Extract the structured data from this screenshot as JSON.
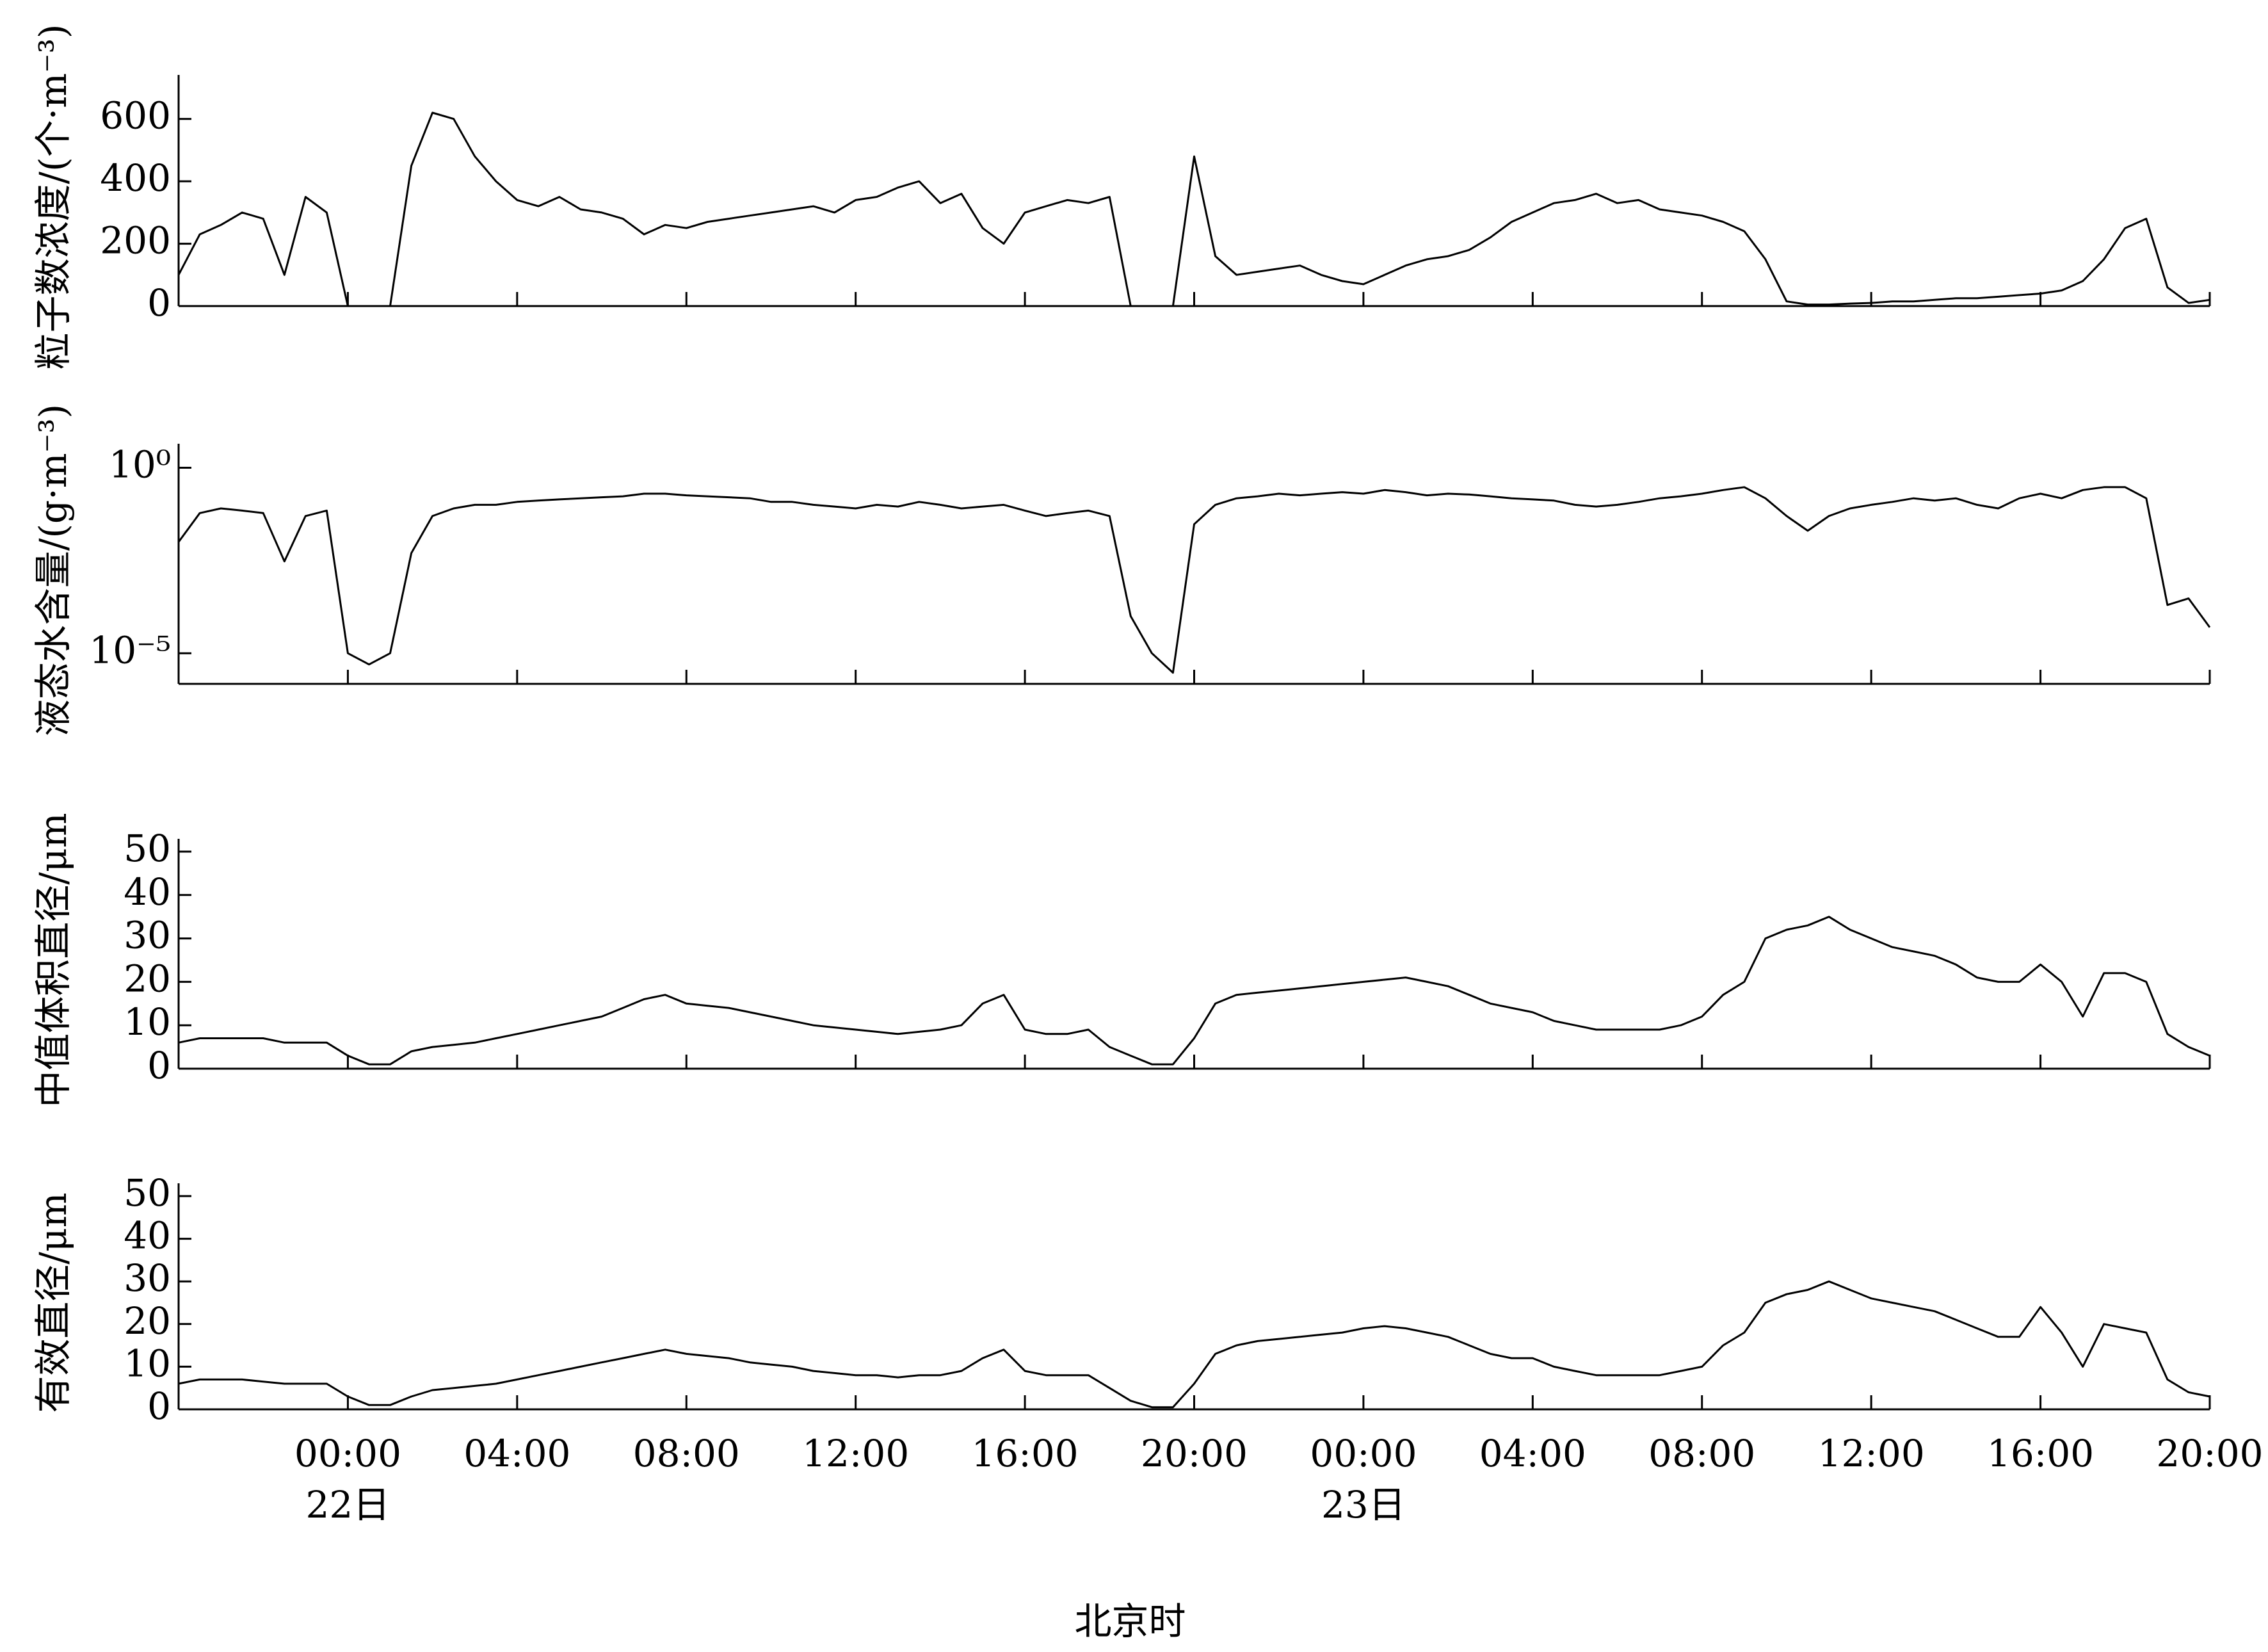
{
  "chart_data": [
    {
      "type": "line",
      "ylabel": "粒子数浓度/(个·m⁻³)",
      "color": "#000000",
      "xlim": [
        0,
        48
      ],
      "xticks": [
        4,
        8,
        12,
        16,
        20,
        24,
        28,
        32,
        36,
        40,
        44,
        48
      ],
      "ylim": [
        0,
        700
      ],
      "yticks": [
        0,
        200,
        400,
        600
      ],
      "x": [
        0,
        0.5,
        1,
        1.5,
        2,
        2.5,
        3,
        3.5,
        4,
        4.5,
        5,
        5.5,
        6,
        6.5,
        7,
        7.5,
        8,
        8.5,
        9,
        9.5,
        10,
        10.5,
        11,
        11.5,
        12,
        12.5,
        13,
        13.5,
        14,
        14.5,
        15,
        15.5,
        16,
        16.5,
        17,
        17.5,
        18,
        18.5,
        19,
        19.5,
        20,
        20.5,
        21,
        21.5,
        22,
        22.5,
        23,
        23.5,
        24,
        24.5,
        25,
        25.5,
        26,
        26.5,
        27,
        27.5,
        28,
        28.5,
        29,
        29.5,
        30,
        30.5,
        31,
        31.5,
        32,
        32.5,
        33,
        33.5,
        34,
        34.5,
        35,
        35.5,
        36,
        36.5,
        37,
        37.5,
        38,
        38.5,
        39,
        39.5,
        40,
        40.5,
        41,
        41.5,
        42,
        42.5,
        43,
        43.5,
        44,
        44.5,
        45,
        45.5,
        46,
        46.5,
        47,
        47.5,
        48
      ],
      "values": [
        100,
        230,
        260,
        300,
        280,
        100,
        350,
        300,
        0,
        0,
        0,
        450,
        620,
        600,
        480,
        400,
        340,
        320,
        350,
        310,
        300,
        280,
        230,
        260,
        250,
        270,
        280,
        290,
        300,
        310,
        320,
        300,
        340,
        350,
        380,
        400,
        330,
        360,
        250,
        200,
        300,
        320,
        340,
        330,
        350,
        0,
        0,
        0,
        480,
        160,
        100,
        110,
        120,
        130,
        100,
        80,
        70,
        100,
        130,
        150,
        160,
        180,
        220,
        270,
        300,
        330,
        340,
        360,
        330,
        340,
        310,
        300,
        290,
        270,
        240,
        150,
        15,
        5,
        5,
        8,
        10,
        15,
        15,
        20,
        25,
        25,
        30,
        35,
        40,
        50,
        80,
        150,
        250,
        280,
        60,
        10,
        20
      ]
    },
    {
      "type": "line",
      "ylabel": "液态水含量/(g·m⁻³)",
      "color": "#000000",
      "log_y": true,
      "xlim": [
        0,
        48
      ],
      "xticks": [
        4,
        8,
        12,
        16,
        20,
        24,
        28,
        32,
        36,
        40,
        44,
        48
      ],
      "ylim": [
        1.5e-06,
        2
      ],
      "yticks": [
        {
          "value": 1,
          "label": "10⁰"
        },
        {
          "value": 1e-05,
          "label": "10⁻⁵"
        }
      ],
      "x": [
        0,
        0.5,
        1,
        1.5,
        2,
        2.5,
        3,
        3.5,
        4,
        4.5,
        5,
        5.5,
        6,
        6.5,
        7,
        7.5,
        8,
        8.5,
        9,
        9.5,
        10,
        10.5,
        11,
        11.5,
        12,
        12.5,
        13,
        13.5,
        14,
        14.5,
        15,
        15.5,
        16,
        16.5,
        17,
        17.5,
        18,
        18.5,
        19,
        19.5,
        20,
        20.5,
        21,
        21.5,
        22,
        22.5,
        23,
        23.5,
        24,
        24.5,
        25,
        25.5,
        26,
        26.5,
        27,
        27.5,
        28,
        28.5,
        29,
        29.5,
        30,
        30.5,
        31,
        31.5,
        32,
        32.5,
        33,
        33.5,
        34,
        34.5,
        35,
        35.5,
        36,
        36.5,
        37,
        37.5,
        38,
        38.5,
        39,
        39.5,
        40,
        40.5,
        41,
        41.5,
        42,
        42.5,
        43,
        43.5,
        44,
        44.5,
        45,
        45.5,
        46,
        46.5,
        47,
        47.5,
        48
      ],
      "values": [
        0.01,
        0.06,
        0.08,
        0.07,
        0.06,
        0.003,
        0.05,
        0.07,
        1e-05,
        5e-06,
        1e-05,
        0.005,
        0.05,
        0.08,
        0.1,
        0.1,
        0.12,
        0.13,
        0.14,
        0.15,
        0.16,
        0.17,
        0.2,
        0.2,
        0.18,
        0.17,
        0.16,
        0.15,
        0.12,
        0.12,
        0.1,
        0.09,
        0.08,
        0.1,
        0.09,
        0.12,
        0.1,
        0.08,
        0.09,
        0.1,
        0.07,
        0.05,
        0.06,
        0.07,
        0.05,
        0.0001,
        1e-05,
        3e-06,
        0.03,
        0.1,
        0.15,
        0.17,
        0.2,
        0.18,
        0.2,
        0.22,
        0.2,
        0.25,
        0.22,
        0.18,
        0.2,
        0.19,
        0.17,
        0.15,
        0.14,
        0.13,
        0.1,
        0.09,
        0.1,
        0.12,
        0.15,
        0.17,
        0.2,
        0.25,
        0.3,
        0.15,
        0.05,
        0.02,
        0.05,
        0.08,
        0.1,
        0.12,
        0.15,
        0.13,
        0.15,
        0.1,
        0.08,
        0.15,
        0.2,
        0.15,
        0.25,
        0.3,
        0.3,
        0.15,
        0.0002,
        0.0003,
        5e-05
      ]
    },
    {
      "type": "line",
      "ylabel": "中值体积直径/μm",
      "color": "#000000",
      "xlim": [
        0,
        48
      ],
      "xticks": [
        4,
        8,
        12,
        16,
        20,
        24,
        28,
        32,
        36,
        40,
        44,
        48
      ],
      "ylim": [
        0,
        50
      ],
      "yticks": [
        0,
        10,
        20,
        30,
        40,
        50
      ],
      "x": [
        0,
        0.5,
        1,
        1.5,
        2,
        2.5,
        3,
        3.5,
        4,
        4.5,
        5,
        5.5,
        6,
        6.5,
        7,
        7.5,
        8,
        8.5,
        9,
        9.5,
        10,
        10.5,
        11,
        11.5,
        12,
        12.5,
        13,
        13.5,
        14,
        14.5,
        15,
        15.5,
        16,
        16.5,
        17,
        17.5,
        18,
        18.5,
        19,
        19.5,
        20,
        20.5,
        21,
        21.5,
        22,
        22.5,
        23,
        23.5,
        24,
        24.5,
        25,
        25.5,
        26,
        26.5,
        27,
        27.5,
        28,
        28.5,
        29,
        29.5,
        30,
        30.5,
        31,
        31.5,
        32,
        32.5,
        33,
        33.5,
        34,
        34.5,
        35,
        35.5,
        36,
        36.5,
        37,
        37.5,
        38,
        38.5,
        39,
        39.5,
        40,
        40.5,
        41,
        41.5,
        42,
        42.5,
        43,
        43.5,
        44,
        44.5,
        45,
        45.5,
        46,
        46.5,
        47,
        47.5,
        48
      ],
      "values": [
        6,
        7,
        7,
        7,
        7,
        6,
        6,
        6,
        3,
        1,
        1,
        4,
        5,
        5.5,
        6,
        7,
        8,
        9,
        10,
        11,
        12,
        14,
        16,
        17,
        15,
        14.5,
        14,
        13,
        12,
        11,
        10,
        9.5,
        9,
        8.5,
        8,
        8.5,
        9,
        10,
        15,
        17,
        9,
        8,
        8,
        9,
        5,
        3,
        1,
        1,
        7,
        15,
        17,
        17.5,
        18,
        18.5,
        19,
        19.5,
        20,
        20.5,
        21,
        20,
        19,
        17,
        15,
        14,
        13,
        11,
        10,
        9,
        9,
        9,
        9,
        10,
        12,
        17,
        20,
        30,
        32,
        33,
        35,
        32,
        30,
        28,
        27,
        26,
        24,
        21,
        20,
        20,
        24,
        20,
        12,
        22,
        22,
        20,
        8,
        5,
        3
      ]
    },
    {
      "type": "line",
      "ylabel": "有效直径/μm",
      "color": "#000000",
      "xlim": [
        0,
        48
      ],
      "xticks": [
        {
          "value": 4,
          "label": "00:00"
        },
        {
          "value": 8,
          "label": "04:00"
        },
        {
          "value": 12,
          "label": "08:00"
        },
        {
          "value": 16,
          "label": "12:00"
        },
        {
          "value": 20,
          "label": "16:00"
        },
        {
          "value": 24,
          "label": "20:00"
        },
        {
          "value": 28,
          "label": "00:00"
        },
        {
          "value": 32,
          "label": "04:00"
        },
        {
          "value": 36,
          "label": "08:00"
        },
        {
          "value": 40,
          "label": "12:00"
        },
        {
          "value": 44,
          "label": "16:00"
        },
        {
          "value": 48,
          "label": "20:00"
        }
      ],
      "date_labels": [
        {
          "x": 4,
          "label": "22日"
        },
        {
          "x": 28,
          "label": "23日"
        }
      ],
      "xlabel": "北京时",
      "ylim": [
        0,
        50
      ],
      "yticks": [
        0,
        10,
        20,
        30,
        40,
        50
      ],
      "x": [
        0,
        0.5,
        1,
        1.5,
        2,
        2.5,
        3,
        3.5,
        4,
        4.5,
        5,
        5.5,
        6,
        6.5,
        7,
        7.5,
        8,
        8.5,
        9,
        9.5,
        10,
        10.5,
        11,
        11.5,
        12,
        12.5,
        13,
        13.5,
        14,
        14.5,
        15,
        15.5,
        16,
        16.5,
        17,
        17.5,
        18,
        18.5,
        19,
        19.5,
        20,
        20.5,
        21,
        21.5,
        22,
        22.5,
        23,
        23.5,
        24,
        24.5,
        25,
        25.5,
        26,
        26.5,
        27,
        27.5,
        28,
        28.5,
        29,
        29.5,
        30,
        30.5,
        31,
        31.5,
        32,
        32.5,
        33,
        33.5,
        34,
        34.5,
        35,
        35.5,
        36,
        36.5,
        37,
        37.5,
        38,
        38.5,
        39,
        39.5,
        40,
        40.5,
        41,
        41.5,
        42,
        42.5,
        43,
        43.5,
        44,
        44.5,
        45,
        45.5,
        46,
        46.5,
        47,
        47.5,
        48
      ],
      "values": [
        6,
        7,
        7,
        7,
        6.5,
        6,
        6,
        6,
        3,
        1,
        1,
        3,
        4.5,
        5,
        5.5,
        6,
        7,
        8,
        9,
        10,
        11,
        12,
        13,
        14,
        13,
        12.5,
        12,
        11,
        10.5,
        10,
        9,
        8.5,
        8,
        8,
        7.5,
        8,
        8,
        9,
        12,
        14,
        9,
        8,
        8,
        8,
        5,
        2,
        0.5,
        0.5,
        6,
        13,
        15,
        16,
        16.5,
        17,
        17.5,
        18,
        19,
        19.5,
        19,
        18,
        17,
        15,
        13,
        12,
        12,
        10,
        9,
        8,
        8,
        8,
        8,
        9,
        10,
        15,
        18,
        25,
        27,
        28,
        30,
        28,
        26,
        25,
        24,
        23,
        21,
        19,
        17,
        17,
        24,
        18,
        10,
        20,
        19,
        18,
        7,
        4,
        3
      ]
    }
  ]
}
